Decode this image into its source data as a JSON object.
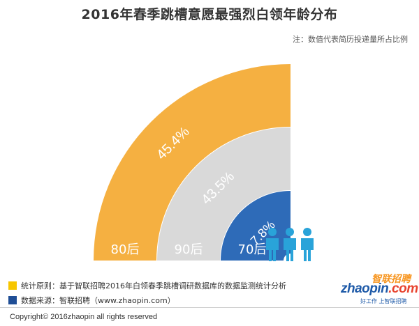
{
  "title": "2016年春季跳槽意愿最强烈白领年龄分布",
  "note": "注：数值代表简历投递量所占比例",
  "chart_data": {
    "type": "radial-bar",
    "title": "2016年春季跳槽意愿最强烈白领年龄分布",
    "note": "注：数值代表简历投递量所占比例",
    "categories": [
      "80后",
      "90后",
      "70后"
    ],
    "values": [
      45.4,
      43.5,
      7.8
    ],
    "value_labels": [
      "45.4%",
      "43.5%",
      "7.8%"
    ],
    "colors": [
      "#f5b041",
      "#d9d9d9",
      "#2e6bb8"
    ]
  },
  "footnotes": [
    {
      "color": "#f7c600",
      "text": "统计原则：基于智联招聘2016年白领春季跳槽调研数据库的数据监测统计分析"
    },
    {
      "color": "#1f4e96",
      "text": "数据来源：智联招聘（www.zhaopin.com）"
    }
  ],
  "copyright": "Copyright© 2016zhaopin all rights reserved",
  "logo": {
    "cn": "智联招聘",
    "en_main": "zhaopin",
    "en_tld": ".com",
    "slogan": "好工作 上智联招聘",
    "icon": "people-icon"
  }
}
